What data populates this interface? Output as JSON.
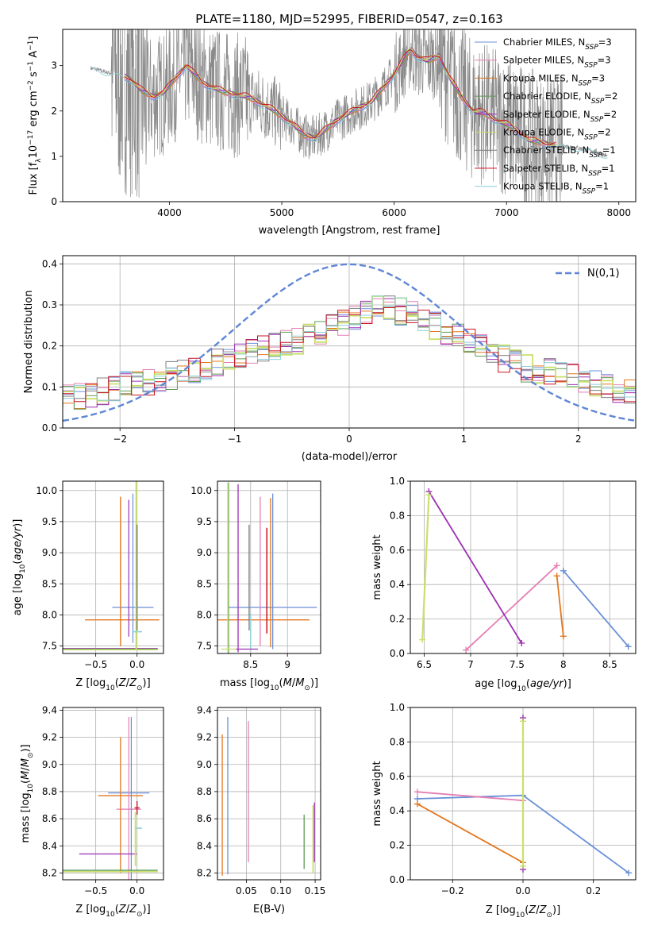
{
  "title": "PLATE=1180, MJD=52995, FIBERID=0547, z=0.163",
  "colors": {
    "chabrier_miles": "#6a8fd8",
    "salpeter_miles": "#e37fb3",
    "kroupa_miles": "#e3771f",
    "chabrier_elodie": "#5d9b54",
    "salpeter_elodie": "#9c2fb3",
    "kroupa_elodie": "#c9e06a",
    "chabrier_stelib": "#7f7f7f",
    "salpeter_stelib": "#c8141e",
    "kroupa_stelib": "#8fd0d8"
  },
  "chart_data": [
    {
      "id": "spectrum",
      "type": "line",
      "xlabel": "wavelength [Angstrom, rest frame]",
      "ylabel": "Flux [f_λ 10^-17 erg cm^-2 s^-1 A^-1]",
      "xlim": [
        3050,
        8150
      ],
      "ylim": [
        0,
        3.8
      ],
      "xticks": [
        4000,
        5000,
        6000,
        7000,
        8000
      ],
      "yticks": [
        0,
        1,
        2,
        3
      ],
      "grid": false,
      "legend_position": "right",
      "continuum": {
        "x": [
          3300,
          3450,
          3550,
          3650,
          3750,
          3850,
          3950,
          4050,
          4150,
          4300,
          4500,
          4700,
          4900,
          5100,
          5200,
          5300,
          5400,
          5500,
          5600,
          5800,
          6000,
          6100,
          6150,
          6200,
          6300,
          6400,
          6500,
          6600,
          6700,
          6800,
          6900,
          7000,
          7100,
          7200,
          7400,
          7600,
          7800,
          7900
        ],
        "y": [
          2.95,
          2.85,
          2.8,
          2.7,
          2.45,
          2.3,
          2.4,
          2.7,
          3.0,
          2.6,
          2.4,
          2.3,
          2.05,
          1.7,
          1.45,
          1.4,
          1.6,
          1.8,
          1.95,
          2.2,
          2.8,
          3.2,
          3.35,
          3.2,
          3.1,
          3.2,
          2.7,
          2.3,
          2.0,
          1.95,
          1.8,
          1.7,
          1.55,
          1.35,
          1.25,
          1.2,
          1.1,
          1.0
        ]
      },
      "series": [
        {
          "name": "Chabrier MILES, N_SSP=3",
          "color_key": "chabrier_miles"
        },
        {
          "name": "Salpeter MILES, N_SSP=3",
          "color_key": "salpeter_miles"
        },
        {
          "name": "Kroupa MILES, N_SSP=3",
          "color_key": "kroupa_miles"
        },
        {
          "name": "Chabrier ELODIE, N_SSP=2",
          "color_key": "chabrier_elodie"
        },
        {
          "name": "Salpeter ELODIE, N_SSP=2",
          "color_key": "salpeter_elodie"
        },
        {
          "name": "Kroupa ELODIE, N_SSP=2",
          "color_key": "kroupa_elodie"
        },
        {
          "name": "Chabrier STELIB, N_SSP=1",
          "color_key": "chabrier_stelib"
        },
        {
          "name": "Salpeter STELIB, N_SSP=1",
          "color_key": "salpeter_stelib"
        },
        {
          "name": "Kroupa STELIB, N_SSP=1",
          "color_key": "kroupa_stelib"
        }
      ]
    },
    {
      "id": "residuals",
      "type": "line",
      "xlabel": "(data-model)/error",
      "ylabel": "Normed distribution",
      "xlim": [
        -2.5,
        2.5
      ],
      "ylim": [
        0,
        0.42
      ],
      "xticks": [
        -2,
        -1,
        0,
        1,
        2
      ],
      "yticks": [
        0.0,
        0.1,
        0.2,
        0.3,
        0.4
      ],
      "grid": true,
      "legend": "N(0,1)",
      "legend_position": "top-right",
      "histogram_envelope": {
        "x": [
          -2.5,
          -2.0,
          -1.5,
          -1.0,
          -0.5,
          0.0,
          0.25,
          0.5,
          1.0,
          1.5,
          2.0,
          2.5
        ],
        "y": [
          0.07,
          0.1,
          0.13,
          0.17,
          0.21,
          0.26,
          0.3,
          0.28,
          0.22,
          0.15,
          0.12,
          0.08
        ]
      }
    },
    {
      "id": "age-vs-Z",
      "type": "scatter",
      "xlabel": "Z [log10(Z/Z⊙)]",
      "ylabel": "age [log10(age/yr)]",
      "xlim": [
        -0.9,
        0.32
      ],
      "ylim": [
        7.38,
        10.15
      ],
      "xticks": [
        -0.5,
        0.0
      ],
      "yticks": [
        7.5,
        8.0,
        8.5,
        9.0,
        9.5,
        10.0
      ],
      "grid": true
    },
    {
      "id": "age-vs-mass",
      "type": "scatter",
      "xlabel": "mass [log10(M/M⊙)]",
      "ylabel": "",
      "xlim": [
        8.05,
        9.45
      ],
      "ylim": [
        7.38,
        10.15
      ],
      "xticks": [
        8.5,
        9.0
      ],
      "yticks": [
        7.5,
        8.0,
        8.5,
        9.0,
        9.5,
        10.0
      ],
      "grid": true
    },
    {
      "id": "weight-vs-age",
      "type": "line",
      "xlabel": "age [log10(age/yr)]",
      "ylabel": "mass weight",
      "xlim": [
        6.35,
        8.78
      ],
      "ylim": [
        0,
        1.0
      ],
      "xticks": [
        6.5,
        7.0,
        7.5,
        8.0,
        8.5
      ],
      "yticks": [
        0.0,
        0.2,
        0.4,
        0.6,
        0.8,
        1.0
      ],
      "grid": true,
      "series": [
        {
          "color_key": "chabrier_miles",
          "x": [
            8.0,
            8.7
          ],
          "y": [
            0.48,
            0.04
          ]
        },
        {
          "color_key": "salpeter_miles",
          "x": [
            6.95,
            7.93
          ],
          "y": [
            0.02,
            0.51
          ]
        },
        {
          "color_key": "kroupa_miles",
          "x": [
            7.93,
            8.0
          ],
          "y": [
            0.45,
            0.1
          ]
        },
        {
          "color_key": "salpeter_elodie",
          "x": [
            6.55,
            7.55
          ],
          "y": [
            0.94,
            0.06
          ]
        },
        {
          "color_key": "kroupa_elodie",
          "x": [
            6.48,
            6.55
          ],
          "y": [
            0.08,
            0.92
          ]
        }
      ]
    },
    {
      "id": "mass-vs-Z",
      "type": "scatter",
      "xlabel": "Z [log10(Z/Z⊙)]",
      "ylabel": "mass [log10(M/M⊙)]",
      "xlim": [
        -0.9,
        0.32
      ],
      "ylim": [
        8.15,
        9.42
      ],
      "xticks": [
        -0.5,
        0.0
      ],
      "yticks": [
        8.2,
        8.4,
        8.6,
        8.8,
        9.0,
        9.2,
        9.4
      ],
      "grid": true
    },
    {
      "id": "mass-vs-ebv",
      "type": "scatter",
      "xlabel": "E(B-V)",
      "ylabel": "",
      "xlim": [
        0.008,
        0.158
      ],
      "ylim": [
        8.15,
        9.42
      ],
      "xticks": [
        0.05,
        0.1,
        0.15
      ],
      "yticks": [
        8.2,
        8.4,
        8.6,
        8.8,
        9.0,
        9.2,
        9.4
      ],
      "grid": true
    },
    {
      "id": "weight-vs-Z",
      "type": "line",
      "xlabel": "Z [log10(Z/Z⊙)]",
      "ylabel": "mass weight",
      "xlim": [
        -0.32,
        0.32
      ],
      "ylim": [
        0,
        1.0
      ],
      "xticks": [
        -0.2,
        0.0,
        0.2
      ],
      "yticks": [
        0.0,
        0.2,
        0.4,
        0.6,
        0.8,
        1.0
      ],
      "grid": true,
      "series": [
        {
          "color_key": "chabrier_miles",
          "x": [
            -0.3,
            0.0,
            0.3
          ],
          "y": [
            0.47,
            0.49,
            0.04
          ]
        },
        {
          "color_key": "salpeter_miles",
          "x": [
            -0.3,
            0.0
          ],
          "y": [
            0.51,
            0.46
          ]
        },
        {
          "color_key": "kroupa_miles",
          "x": [
            -0.3,
            0.0
          ],
          "y": [
            0.44,
            0.1
          ]
        },
        {
          "color_key": "salpeter_elodie",
          "x": [
            0.0,
            0.0
          ],
          "y": [
            0.94,
            0.06
          ]
        },
        {
          "color_key": "kroupa_elodie",
          "x": [
            0.0,
            0.0
          ],
          "y": [
            0.92,
            0.08
          ]
        }
      ]
    }
  ]
}
